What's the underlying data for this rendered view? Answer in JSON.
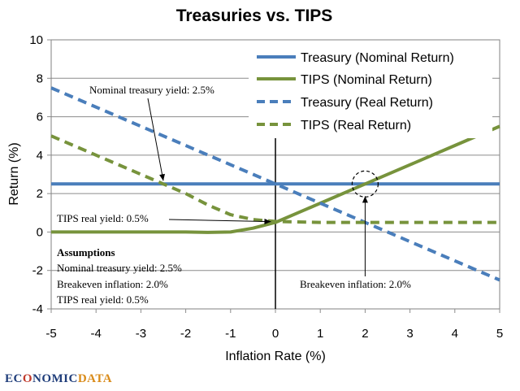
{
  "chart_data": {
    "type": "line",
    "title": "Treasuries vs. TIPS",
    "xlabel": "Inflation Rate (%)",
    "ylabel": "Return (%)",
    "xlim": [
      -5,
      5
    ],
    "ylim": [
      -4,
      10
    ],
    "x_ticks": [
      "-5",
      "-4",
      "-3",
      "-2",
      "-1",
      "0",
      "1",
      "2",
      "3",
      "4",
      "5"
    ],
    "y_ticks": [
      "-4",
      "-2",
      "0",
      "2",
      "4",
      "6",
      "8",
      "10"
    ],
    "grid": "horizontal",
    "legend_position": "top-right",
    "series": [
      {
        "name": "Treasury (Nominal Return)",
        "color": "#4a7ebb",
        "style": "solid",
        "x": [
          -5,
          5
        ],
        "y": [
          2.5,
          2.5
        ]
      },
      {
        "name": "TIPS (Nominal Return)",
        "color": "#77933c",
        "style": "solid",
        "x": [
          -5,
          -2,
          -1.5,
          -1,
          -0.5,
          0,
          0.5,
          1,
          2,
          3,
          4,
          5
        ],
        "y": [
          0,
          0,
          -0.02,
          0,
          0.2,
          0.5,
          1.0,
          1.5,
          2.5,
          3.5,
          4.5,
          5.5
        ]
      },
      {
        "name": "Treasury (Real Return)",
        "color": "#4a7ebb",
        "style": "dashed",
        "x": [
          -5,
          5
        ],
        "y": [
          7.5,
          -2.5
        ]
      },
      {
        "name": "TIPS (Real Return)",
        "color": "#77933c",
        "style": "dashed",
        "x": [
          -5,
          -2.5,
          -2,
          -1.5,
          -1,
          -0.5,
          0,
          1,
          2,
          5
        ],
        "y": [
          5.0,
          2.5,
          2.0,
          1.4,
          0.9,
          0.65,
          0.55,
          0.5,
          0.5,
          0.5
        ]
      }
    ],
    "annotations": {
      "nominal_yield": {
        "text": "Nominal treasury yield: 2.5%",
        "target": [
          -2.5,
          2.5
        ]
      },
      "tips_yield": {
        "text": "TIPS real yield: 0.5%",
        "target": [
          -0.1,
          0.5
        ]
      },
      "breakeven": {
        "text": "Breakeven inflation: 2.0%",
        "target": [
          2,
          2.5
        ]
      },
      "assumptions_title": "Assumptions",
      "assumptions": [
        "Nominal treasury yield: 2.5%",
        "Breakeven inflation: 2.0%",
        "TIPS real yield: 0.5%"
      ],
      "vertical_line_x": 0
    }
  },
  "brand": {
    "eco": "EC",
    "o_mark": "O",
    "nomic": "NOMIC",
    "data": "DATA"
  }
}
